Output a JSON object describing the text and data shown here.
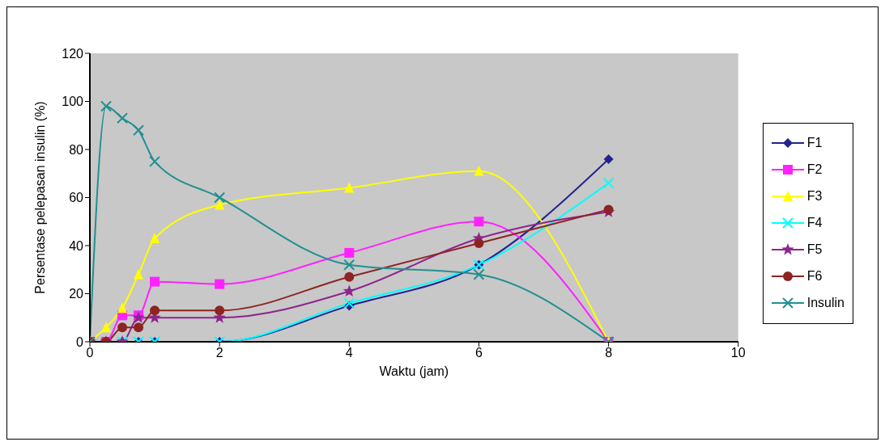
{
  "chart_data": {
    "type": "line",
    "xlabel": "Waktu (jam)",
    "ylabel": "Persentase pelepasan insulin (%)",
    "x": [
      0,
      0.25,
      0.5,
      0.75,
      1,
      2,
      4,
      6,
      8
    ],
    "xlim": [
      0,
      10
    ],
    "xticks": [
      0,
      2,
      4,
      6,
      8,
      10
    ],
    "ylim": [
      0,
      120
    ],
    "yticks": [
      0,
      20,
      40,
      60,
      80,
      100,
      120
    ],
    "grid": false,
    "legend": "right",
    "line_style": "solid",
    "series": [
      {
        "name": "F1",
        "color": "#23238e",
        "marker": "diamond",
        "values": [
          0,
          0,
          0,
          0,
          0,
          0,
          15,
          32,
          76
        ]
      },
      {
        "name": "F2",
        "color": "#ff22ff",
        "marker": "square",
        "values": [
          0,
          0,
          11,
          11,
          25,
          24,
          37,
          50,
          0
        ]
      },
      {
        "name": "F3",
        "color": "#ffff00",
        "marker": "triangle",
        "values": [
          0,
          6,
          14,
          28,
          43,
          57,
          64,
          71,
          0
        ]
      },
      {
        "name": "F4",
        "color": "#00ffff",
        "marker": "cross",
        "values": [
          null,
          null,
          0,
          0,
          0,
          0,
          16,
          32,
          66
        ]
      },
      {
        "name": "F5",
        "color": "#8e248e",
        "marker": "star",
        "values": [
          0,
          0,
          0,
          10,
          10,
          10,
          21,
          43,
          54
        ]
      },
      {
        "name": "F6",
        "color": "#8e2323",
        "marker": "circle",
        "values": [
          0,
          0,
          6,
          6,
          13,
          13,
          27,
          41,
          55
        ]
      },
      {
        "name": "Insulin",
        "color": "#229090",
        "marker": "cross",
        "values": [
          0,
          98,
          93,
          88,
          75,
          60,
          32,
          28,
          0
        ]
      }
    ]
  }
}
